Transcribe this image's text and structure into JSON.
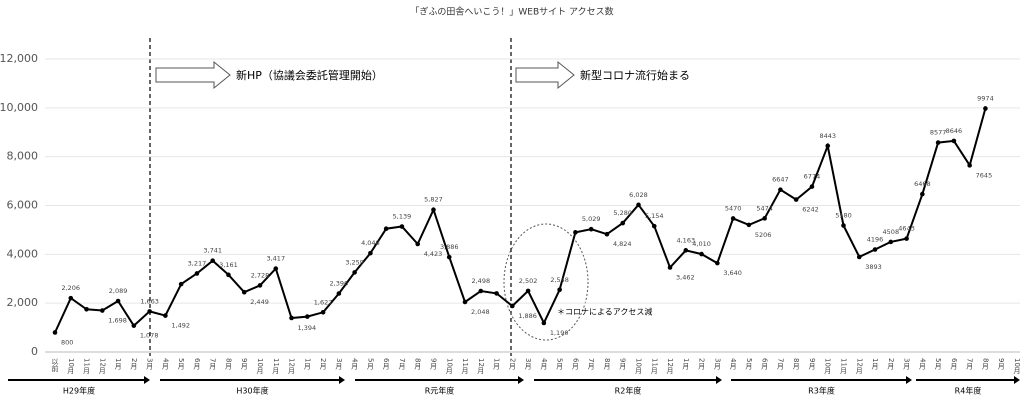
{
  "chart_data": {
    "type": "line",
    "title": "「ぎふの田舎へいこう！」WEBサイト アクセス数",
    "categories": [
      "以前",
      "10月",
      "11月",
      "12月",
      "1月",
      "2月",
      "3月",
      "4月",
      "5月",
      "6月",
      "7月",
      "8月",
      "9月",
      "10月",
      "11月",
      "12月",
      "1月",
      "2月",
      "3月",
      "4月",
      "5月",
      "6月",
      "7月",
      "8月",
      "9月",
      "10月",
      "11月",
      "12月",
      "1月",
      "2月",
      "3月",
      "4月",
      "5月",
      "6月",
      "7月",
      "8月",
      "9月",
      "10月",
      "11月",
      "12月",
      "1月",
      "2月",
      "3月",
      "4月",
      "5月",
      "6月",
      "7月",
      "8月",
      "9月",
      "10月",
      "11月",
      "12月",
      "1月",
      "2月",
      "3月",
      "4月",
      "5月",
      "6月",
      "7月",
      "8月",
      "9月",
      "10月"
    ],
    "series": [
      {
        "name": "アクセス数",
        "color": "#000000",
        "values": [
          800,
          2206,
          1750,
          1698,
          2089,
          1078,
          1663,
          1492,
          2780,
          3217,
          3741,
          3161,
          2449,
          2728,
          3417,
          1394,
          1450,
          1627,
          2396,
          3259,
          4048,
          5050,
          5139,
          4423,
          5827,
          3886,
          2048,
          2498,
          2400,
          1886,
          2502,
          1190,
          2548,
          4900,
          5029,
          4824,
          5280,
          6028,
          5154,
          3462,
          4163,
          4010,
          3640,
          5470,
          5206,
          5474,
          6647,
          6242,
          6774,
          8443,
          5180,
          3893,
          4196,
          4508,
          4643,
          6468,
          8577,
          8646,
          7645,
          9974,
          null,
          null
        ],
        "value_labels": [
          "800",
          "2,206",
          null,
          "1,698",
          "2,089",
          "1,078",
          "1,663",
          "1,492",
          null,
          "3,217",
          "3,741",
          "3,161",
          "2,449",
          "2,728",
          "3,417",
          "1,394",
          null,
          "1,627",
          "2,396",
          "3,259",
          "4,048",
          null,
          "5,139",
          "4,423",
          "5,827",
          "3,886",
          "2,048",
          "2,498",
          null,
          "1,886",
          "2,502",
          "1,190",
          "2,548",
          null,
          "5,029",
          "4,824",
          "5,280",
          "6,028",
          "5,154",
          "3,462",
          "4,163",
          "4,010",
          "3,640",
          "5470",
          "5206",
          "5474",
          "6647",
          "6242",
          "6774",
          "8443",
          "5180",
          "3893",
          "4196",
          "4508",
          "4643",
          "6468",
          "8577",
          "8646",
          "7645",
          "9974",
          null,
          null
        ]
      }
    ],
    "ylim": [
      0,
      12000
    ],
    "yticks": [
      0,
      {
        "value": 2000,
        "label": "2,000"
      },
      {
        "value": 4000,
        "label": "4,000"
      },
      {
        "value": 6000,
        "label": "6,000"
      },
      {
        "value": 8000,
        "label": "8,000"
      },
      {
        "value": 10000,
        "label": "10,000"
      },
      {
        "value": 12000,
        "label": "12,000"
      }
    ],
    "annotations": [
      "新HP（協議会委託管理開始）",
      "新型コロナ流行始まる",
      "＊コロナによるアクセス減"
    ],
    "fiscal_years": [
      "H29年度",
      "H30年度",
      "R元年度",
      "R2年度",
      "R3年度",
      "R4年度"
    ]
  }
}
